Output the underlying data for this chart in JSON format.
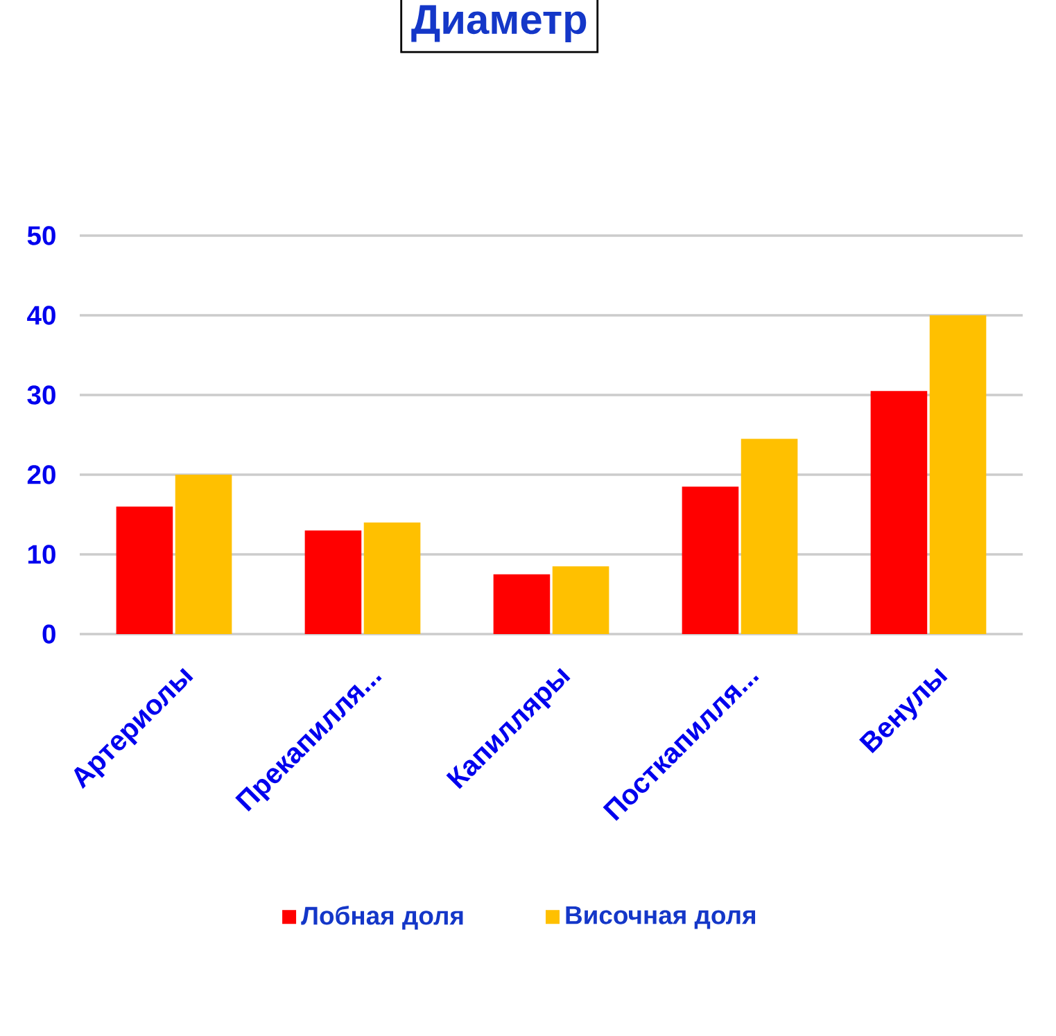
{
  "chart_data": {
    "type": "bar",
    "title": "Диаметр",
    "categories": [
      "Артериолы",
      "Прекапилля...",
      "Капилляры",
      "Посткапилля...",
      "Венулы"
    ],
    "series": [
      {
        "name": "Лобная доля",
        "color": "#ff0000",
        "values": [
          16,
          13,
          7.5,
          18.5,
          30.5
        ]
      },
      {
        "name": "Височная доля",
        "color": "#ffc000",
        "values": [
          20,
          14,
          8.5,
          24.5,
          40
        ]
      }
    ],
    "ylim": [
      0,
      50
    ],
    "yticks": [
      0,
      10,
      20,
      30,
      40,
      50
    ],
    "grid": "y",
    "legend": "bottom"
  }
}
